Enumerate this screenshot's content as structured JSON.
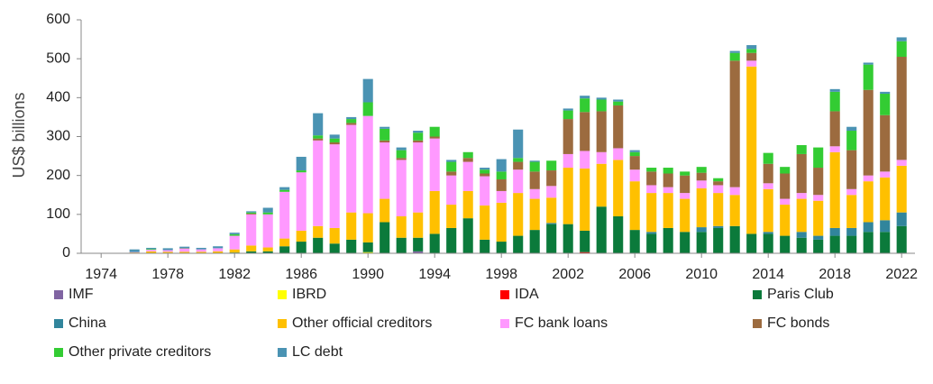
{
  "chart_data": {
    "type": "stacked_bar",
    "y_label": "US$ billions",
    "x": [
      1974,
      1975,
      1976,
      1977,
      1978,
      1979,
      1980,
      1981,
      1982,
      1983,
      1984,
      1985,
      1986,
      1987,
      1988,
      1989,
      1990,
      1991,
      1992,
      1993,
      1994,
      1995,
      1996,
      1997,
      1998,
      1999,
      2000,
      2001,
      2002,
      2003,
      2004,
      2005,
      2006,
      2007,
      2008,
      2009,
      2010,
      2011,
      2012,
      2013,
      2014,
      2015,
      2016,
      2017,
      2018,
      2019,
      2020,
      2021,
      2022
    ],
    "xlim": [
      1972.8,
      2022.8
    ],
    "xticks": [
      1974,
      1978,
      1982,
      1986,
      1990,
      1994,
      1998,
      2002,
      2006,
      2010,
      2014,
      2018,
      2022
    ],
    "ylim": [
      0,
      600
    ],
    "yticks": [
      0,
      100,
      200,
      300,
      400,
      500,
      600
    ],
    "grid": false,
    "legend": "bottom",
    "series": [
      {
        "name": "IMF",
        "color": "#8064a2",
        "values": [
          0,
          0,
          0,
          0,
          0,
          0,
          0,
          0,
          0,
          0,
          0,
          0,
          0,
          0,
          0,
          0,
          0,
          0,
          0,
          5,
          0,
          0,
          0,
          0,
          0,
          0,
          0,
          0,
          0,
          0,
          0,
          0,
          0,
          0,
          0,
          0,
          0,
          0,
          0,
          0,
          0,
          0,
          0,
          0,
          0,
          0,
          0,
          0,
          0
        ]
      },
      {
        "name": "IBRD",
        "color": "#ffff00",
        "values": [
          0,
          0,
          0,
          0,
          0,
          0,
          0,
          0,
          0,
          0,
          0,
          0,
          0,
          0,
          0,
          0,
          3,
          0,
          0,
          0,
          0,
          0,
          0,
          0,
          0,
          0,
          0,
          0,
          0,
          0,
          0,
          0,
          0,
          0,
          0,
          0,
          0,
          0,
          0,
          0,
          0,
          0,
          0,
          0,
          0,
          0,
          0,
          0,
          0
        ]
      },
      {
        "name": "IDA",
        "color": "#ff0000",
        "values": [
          0,
          0,
          0,
          0,
          0,
          0,
          0,
          0,
          0,
          0,
          0,
          0,
          0,
          0,
          0,
          0,
          0,
          0,
          0,
          0,
          0,
          0,
          0,
          0,
          0,
          0,
          0,
          0,
          0,
          3,
          0,
          0,
          0,
          0,
          0,
          0,
          0,
          0,
          0,
          0,
          0,
          0,
          0,
          0,
          0,
          0,
          0,
          0,
          0
        ]
      },
      {
        "name": "Paris Club",
        "color": "#0b7a3b",
        "values": [
          0,
          0,
          0,
          0,
          0,
          0,
          0,
          0,
          2,
          5,
          5,
          18,
          30,
          40,
          25,
          35,
          25,
          80,
          40,
          35,
          50,
          65,
          90,
          35,
          30,
          45,
          60,
          75,
          75,
          55,
          120,
          95,
          60,
          50,
          65,
          55,
          55,
          65,
          70,
          50,
          50,
          45,
          40,
          35,
          45,
          45,
          55,
          55,
          70
        ]
      },
      {
        "name": "China",
        "color": "#31859c",
        "values": [
          0,
          0,
          0,
          0,
          0,
          0,
          0,
          0,
          0,
          0,
          0,
          0,
          0,
          0,
          0,
          0,
          0,
          0,
          0,
          0,
          0,
          0,
          0,
          0,
          0,
          0,
          0,
          3,
          0,
          0,
          0,
          0,
          0,
          5,
          0,
          0,
          12,
          5,
          0,
          0,
          5,
          0,
          15,
          10,
          20,
          20,
          25,
          30,
          35
        ]
      },
      {
        "name": "Other official creditors",
        "color": "#ffc000",
        "values": [
          0,
          0,
          2,
          5,
          4,
          4,
          4,
          5,
          8,
          15,
          10,
          20,
          28,
          30,
          40,
          70,
          75,
          60,
          55,
          65,
          110,
          60,
          70,
          88,
          100,
          110,
          80,
          65,
          145,
          160,
          110,
          145,
          125,
          100,
          90,
          85,
          100,
          85,
          80,
          430,
          110,
          80,
          85,
          90,
          195,
          85,
          105,
          110,
          120
        ]
      },
      {
        "name": "FC bank loans",
        "color": "#ff99ff",
        "values": [
          0,
          0,
          1,
          4,
          4,
          8,
          6,
          8,
          35,
          80,
          85,
          120,
          150,
          220,
          215,
          225,
          250,
          145,
          145,
          180,
          135,
          75,
          75,
          75,
          30,
          60,
          25,
          30,
          35,
          45,
          30,
          30,
          30,
          20,
          15,
          15,
          20,
          20,
          20,
          15,
          15,
          15,
          15,
          15,
          15,
          15,
          15,
          15,
          15
        ]
      },
      {
        "name": "FC bonds",
        "color": "#9c6b3f",
        "values": [
          0,
          0,
          0,
          0,
          0,
          1,
          0,
          0,
          0,
          2,
          0,
          0,
          0,
          5,
          5,
          5,
          0,
          5,
          5,
          5,
          5,
          10,
          10,
          7,
          30,
          20,
          45,
          40,
          90,
          100,
          105,
          110,
          35,
          35,
          35,
          45,
          20,
          10,
          325,
          20,
          50,
          65,
          100,
          70,
          90,
          100,
          220,
          145,
          265
        ]
      },
      {
        "name": "Other private creditors",
        "color": "#33cc33",
        "values": [
          0,
          0,
          0,
          2,
          0,
          0,
          0,
          0,
          4,
          3,
          5,
          5,
          5,
          8,
          10,
          10,
          35,
          30,
          20,
          20,
          25,
          25,
          15,
          10,
          20,
          10,
          25,
          25,
          22,
          35,
          30,
          10,
          10,
          10,
          15,
          10,
          15,
          8,
          20,
          10,
          28,
          17,
          23,
          52,
          50,
          50,
          65,
          55,
          40
        ]
      },
      {
        "name": "LC debt",
        "color": "#4a93b3",
        "values": [
          0,
          0,
          7,
          3,
          5,
          4,
          4,
          5,
          4,
          3,
          12,
          7,
          35,
          57,
          10,
          5,
          60,
          5,
          7,
          5,
          0,
          5,
          0,
          5,
          32,
          73,
          3,
          0,
          5,
          7,
          5,
          5,
          5,
          0,
          0,
          0,
          0,
          0,
          5,
          10,
          0,
          0,
          0,
          0,
          7,
          10,
          5,
          5,
          10
        ]
      }
    ]
  }
}
